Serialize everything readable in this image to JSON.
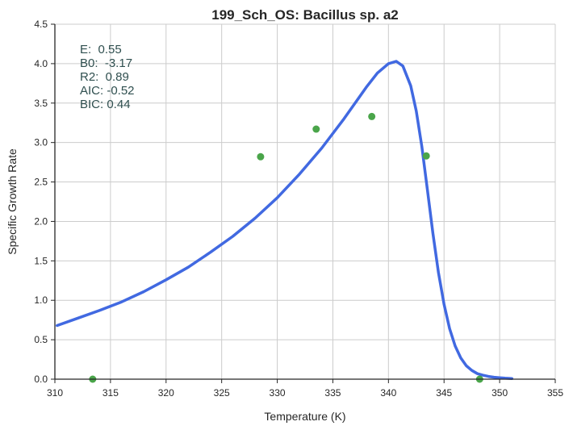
{
  "chart_data": {
    "type": "scatter",
    "title": "199_Sch_OS: Bacillus sp. a2",
    "xlabel": "Temperature (K)",
    "ylabel": "Specific Growth Rate",
    "xlim": [
      310,
      355
    ],
    "ylim": [
      0.0,
      4.5
    ],
    "xticks": [
      "310",
      "315",
      "320",
      "325",
      "330",
      "335",
      "340",
      "345",
      "350",
      "355"
    ],
    "yticks": [
      "0.0",
      "0.5",
      "1.0",
      "1.5",
      "2.0",
      "2.5",
      "3.0",
      "3.5",
      "4.0",
      "4.5"
    ],
    "grid": true,
    "series": [
      {
        "kind": "points",
        "color": "#4aa54a",
        "x": [
          313.4,
          328.5,
          333.5,
          338.5,
          343.4,
          348.2
        ],
        "y": [
          0.0,
          2.82,
          3.17,
          3.33,
          2.83,
          0.0
        ]
      },
      {
        "kind": "fit-curve",
        "color": "#4169e1",
        "x": [
          310.2,
          312,
          314,
          316,
          318,
          320,
          322,
          324,
          326,
          328,
          330,
          332,
          334,
          336,
          337,
          338,
          339,
          340,
          340.7,
          341.3,
          342,
          342.5,
          343,
          343.5,
          344,
          344.5,
          345,
          345.5,
          346,
          346.5,
          347,
          347.5,
          348,
          348.5,
          349,
          349.5,
          350,
          350.5,
          351.1
        ],
        "y": [
          0.68,
          0.77,
          0.87,
          0.98,
          1.11,
          1.26,
          1.42,
          1.61,
          1.81,
          2.04,
          2.3,
          2.6,
          2.93,
          3.3,
          3.5,
          3.7,
          3.88,
          4.0,
          4.03,
          3.97,
          3.72,
          3.4,
          2.95,
          2.4,
          1.85,
          1.35,
          0.95,
          0.64,
          0.42,
          0.27,
          0.17,
          0.11,
          0.07,
          0.05,
          0.035,
          0.025,
          0.018,
          0.012,
          0.008
        ]
      }
    ],
    "annotations": [
      "E:  0.55",
      "B0:  -3.17",
      "R2:  0.89",
      "AIC: -0.52",
      "BIC: 0.44"
    ]
  }
}
